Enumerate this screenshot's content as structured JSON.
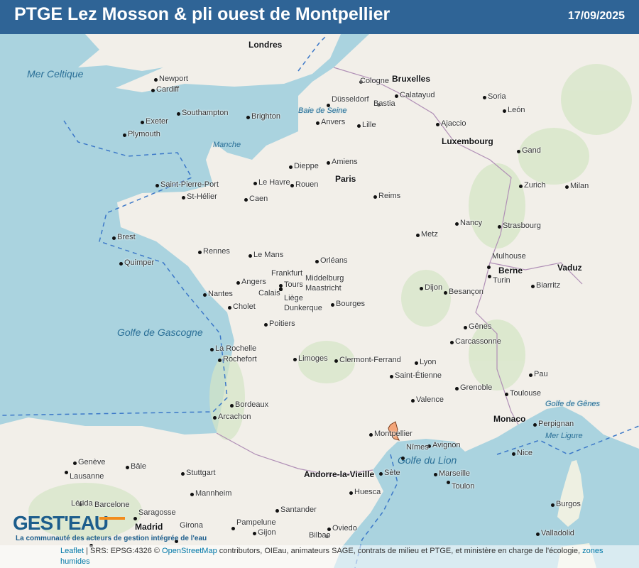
{
  "header": {
    "title": "PTGE Lez Mosson & pli ouest de Montpellier",
    "date": "17/09/2025"
  },
  "colors": {
    "header": "#2f6496",
    "sea": "#aad3df",
    "land": "#f2efe9",
    "highlight": "#f4a67a",
    "logo": "#1c5d8c",
    "logo_accent": "#f28c1c"
  },
  "highlighted_area": "PTGE Lez Mosson & pli ouest de Montpellier",
  "logo": {
    "text": "GEST'EAU",
    "tagline": "La communauté des acteurs de gestion intégrée de l'eau"
  },
  "attribution": {
    "leaflet": "Leaflet",
    "srs": " | SRS: EPSG:4326 © ",
    "osm": "OpenStreetMap",
    "rest": " contributors, OIEau, animateurs SAGE, contrats de milieu et PTGE, et ministère en charge de l'écologie, ",
    "zones": "zones humides"
  },
  "labels": {
    "sea": [
      "Mer Celtique",
      "Golfe de Gascogne",
      "Golfe du Lion",
      "Mer Ligure",
      "Golfe de Gênes",
      "Baie de Seine",
      "Manche"
    ],
    "capitals": [
      "Londres",
      "Paris",
      "Bruxelles",
      "Luxembourg",
      "Berne",
      "Vaduz",
      "Monaco",
      "Andorre-la-Vieille",
      "Madrid"
    ],
    "cities": [
      "Newport",
      "Cardiff",
      "Southampton",
      "Brighton",
      "Exeter",
      "Plymouth",
      "Saint-Pierre-Port",
      "St-Hélier",
      "Brest",
      "Quimper",
      "Rennes",
      "Nantes",
      "Cholet",
      "La Rochelle",
      "Rochefort",
      "Bordeaux",
      "Arcachon",
      "Angers",
      "Le Mans",
      "Tours",
      "Poitiers",
      "Limoges",
      "Caen",
      "Rouen",
      "Le Havre",
      "Dieppe",
      "Amiens",
      "Lille",
      "Reims",
      "Metz",
      "Nancy",
      "Strasbourg",
      "Mulhouse",
      "Dijon",
      "Besançon",
      "Orléans",
      "Bourges",
      "Clermont-Ferrand",
      "Lyon",
      "Grenoble",
      "Saint-Étienne",
      "Valence",
      "Avignon",
      "Nîmes",
      "Montpellier",
      "Sète",
      "Marseille",
      "Toulon",
      "Nice",
      "Perpignan",
      "Toulouse",
      "Pau",
      "Biarritz",
      "Carcassonne",
      "Gênes",
      "Turin",
      "Milan",
      "Zurich",
      "Genève",
      "Lausanne",
      "Bâle",
      "Stuttgart",
      "Mannheim",
      "Gijon",
      "Oviedo",
      "Santander",
      "Bilbao",
      "Pampelune",
      "Saragosse",
      "Barcelone",
      "Lérida",
      "Girona",
      "Huesca",
      "Burgos",
      "Valladolid",
      "León",
      "Soria",
      "Calatayud",
      "Bastia",
      "Ajaccio",
      "Cologne",
      "Düsseldorf",
      "Anvers",
      "Gand",
      "Liège",
      "Maastricht",
      "Middelburg",
      "Dunkerque",
      "Calais",
      "Frankfurt"
    ]
  }
}
